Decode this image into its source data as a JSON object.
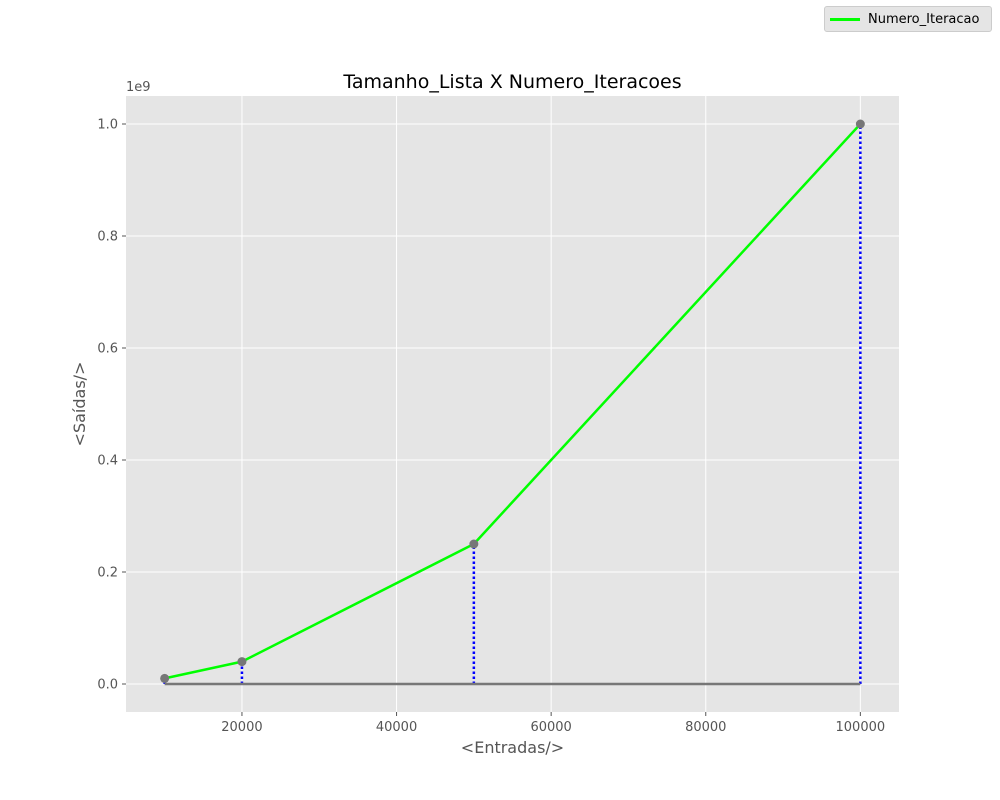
{
  "colors": {
    "line": "#00ff00",
    "marker": "#777777",
    "baseline": "#777777",
    "dotted": "#0000ff",
    "plot_background": "#e5e5e5",
    "grid": "#ffffff"
  },
  "chart_data": {
    "type": "line",
    "title": "Tamanho_Lista X Numero_Iteracoes",
    "xlabel": "<Entradas/>",
    "ylabel": "<Saídas/>",
    "y_offset_label": "1e9",
    "y_scale": 1000000000,
    "xlim": [
      5000,
      105000
    ],
    "ylim": [
      -0.05,
      1.05
    ],
    "x_ticks": [
      20000,
      40000,
      60000,
      80000,
      100000
    ],
    "y_ticks": [
      0.0,
      0.2,
      0.4,
      0.6,
      0.8,
      1.0
    ],
    "x_tick_labels": [
      "20000",
      "40000",
      "60000",
      "80000",
      "100000"
    ],
    "y_tick_labels": [
      "0.0",
      "0.2",
      "0.4",
      "0.6",
      "0.8",
      "1.0"
    ],
    "grid": true,
    "legend_position": "top-right",
    "series": [
      {
        "name": "Numero_Iteracao",
        "x": [
          10000,
          20000,
          50000,
          100000
        ],
        "y": [
          0.01,
          0.04,
          0.25,
          1.0
        ]
      }
    ]
  }
}
